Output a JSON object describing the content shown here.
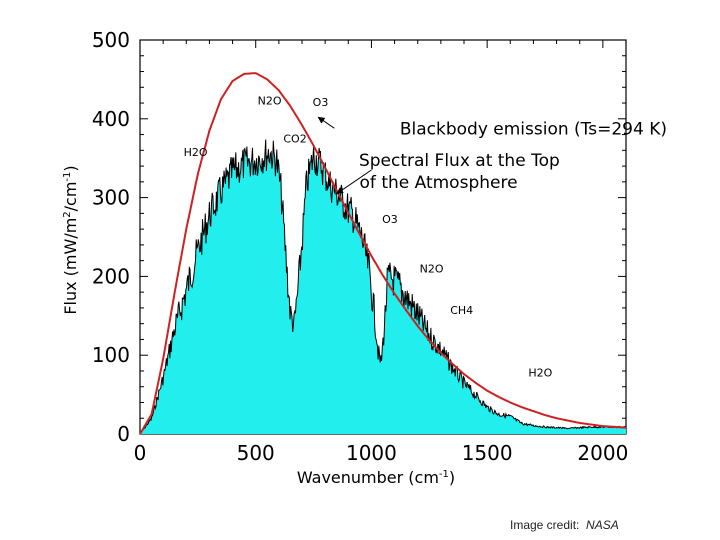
{
  "chart_data": {
    "type": "area",
    "title": "",
    "xlabel": "Wavenumber (cm",
    "xlabel_sup": "-1",
    "xlabel_end": ")",
    "ylabel_parts": [
      "Flux (mW/m",
      "2",
      "/cm",
      "-1",
      ")"
    ],
    "xlim": [
      0,
      2100
    ],
    "ylim": [
      0,
      500
    ],
    "xticks": [
      0,
      500,
      1000,
      1500,
      2000
    ],
    "yticks": [
      0,
      100,
      200,
      300,
      400,
      500
    ],
    "series": [
      {
        "name": "Blackbody emission (Ts=294 K)",
        "style": "line",
        "color": "#cc2222",
        "x": [
          0,
          50,
          100,
          150,
          200,
          250,
          300,
          350,
          400,
          450,
          500,
          550,
          600,
          650,
          700,
          750,
          800,
          850,
          900,
          950,
          1000,
          1050,
          1100,
          1150,
          1200,
          1250,
          1300,
          1350,
          1400,
          1450,
          1500,
          1550,
          1600,
          1650,
          1700,
          1750,
          1800,
          1850,
          1900,
          1950,
          2000,
          2050,
          2100
        ],
        "values": [
          0,
          25,
          95,
          180,
          260,
          330,
          385,
          425,
          448,
          457,
          458,
          450,
          436,
          416,
          392,
          366,
          338,
          309,
          281,
          253,
          226,
          201,
          178,
          157,
          137,
          119,
          103,
          89,
          76,
          65,
          55,
          47,
          40,
          34,
          29,
          24,
          20,
          17,
          14,
          12,
          10,
          9,
          8
        ]
      },
      {
        "name": "Spectral Flux at the Top of the Atmosphere",
        "style": "area",
        "fill": "#22eeee",
        "color": "#000000",
        "x": [
          0,
          50,
          100,
          150,
          200,
          250,
          300,
          350,
          400,
          450,
          500,
          530,
          560,
          590,
          610,
          630,
          650,
          667,
          690,
          720,
          750,
          780,
          820,
          870,
          920,
          960,
          990,
          1010,
          1030,
          1042,
          1055,
          1070,
          1090,
          1120,
          1160,
          1200,
          1250,
          1300,
          1350,
          1400,
          1450,
          1500,
          1550,
          1600,
          1650,
          1700,
          1750,
          1800,
          1850,
          1900,
          1950,
          2000,
          2050,
          2100
        ],
        "values": [
          0,
          22,
          80,
          150,
          205,
          255,
          300,
          330,
          355,
          365,
          370,
          375,
          380,
          370,
          330,
          250,
          170,
          155,
          230,
          340,
          375,
          365,
          340,
          320,
          300,
          270,
          230,
          180,
          115,
          100,
          150,
          220,
          220,
          210,
          190,
          170,
          140,
          120,
          95,
          72,
          55,
          38,
          28,
          25,
          15,
          12,
          10,
          9,
          8,
          9,
          10,
          10,
          10,
          10
        ]
      }
    ],
    "annotations": [
      {
        "text": "Blackbody emission (Ts=294 K)",
        "x": 1700,
        "y": 380,
        "anchor": "center"
      },
      {
        "text": "Spectral Flux at the Top",
        "x": 1380,
        "y": 340,
        "anchor": "center"
      },
      {
        "text": "of the Atmosphere",
        "x": 1290,
        "y": 312,
        "anchor": "center"
      }
    ],
    "gas_labels": [
      {
        "text": "N2O",
        "x": 560,
        "y": 418
      },
      {
        "text": "O3",
        "x": 780,
        "y": 416
      },
      {
        "text": "CO2",
        "x": 670,
        "y": 370
      },
      {
        "text": "H2O",
        "x": 240,
        "y": 353
      },
      {
        "text": "O3",
        "x": 1080,
        "y": 268
      },
      {
        "text": "N2O",
        "x": 1260,
        "y": 205
      },
      {
        "text": "CH4",
        "x": 1390,
        "y": 152
      },
      {
        "text": "H2O",
        "x": 1730,
        "y": 73
      }
    ]
  },
  "credit": {
    "label": "Image credit:",
    "source": "NASA"
  }
}
